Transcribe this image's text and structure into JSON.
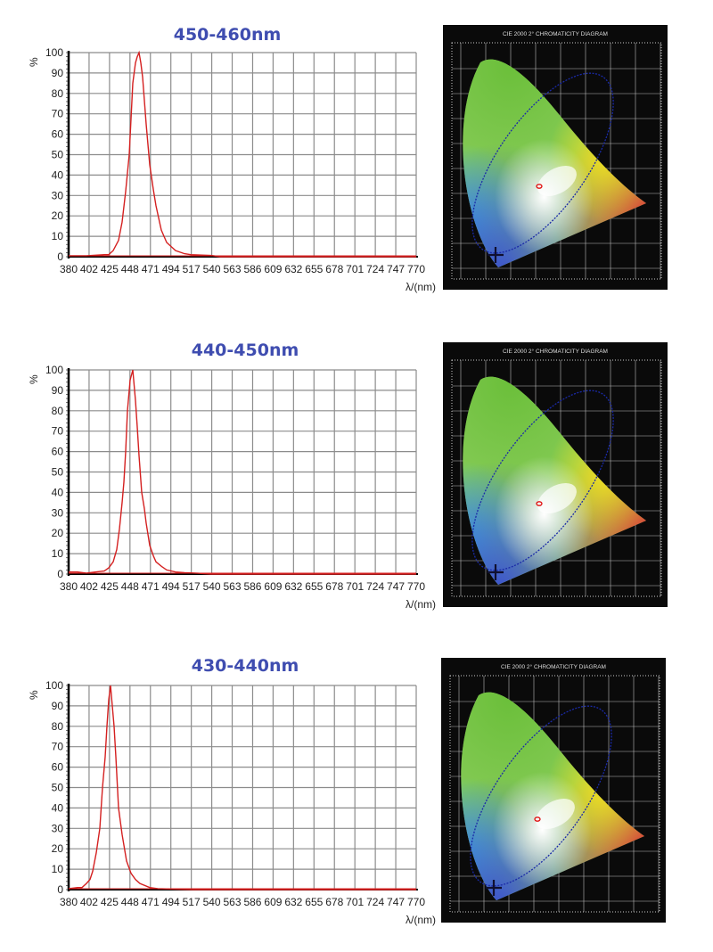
{
  "chart_data": [
    {
      "type": "line",
      "title": "450-460nm",
      "xlabel": "λ/(nm)",
      "ylabel": "%",
      "xlim": [
        380,
        770
      ],
      "ylim": [
        0,
        100
      ],
      "grid": true,
      "x_ticks": [
        "380",
        "402",
        "425",
        "448",
        "471",
        "494",
        "517",
        "540",
        "563",
        "586",
        "609",
        "632",
        "655",
        "678",
        "701",
        "724",
        "747",
        "770"
      ],
      "y_ticks": [
        "0",
        "10",
        "20",
        "30",
        "40",
        "50",
        "60",
        "70",
        "80",
        "90",
        "100"
      ],
      "line_color": "#d42020",
      "x": [
        380,
        400,
        420,
        425,
        430,
        436,
        440,
        444,
        448,
        452,
        455,
        457,
        459,
        461,
        463,
        467,
        471,
        475,
        478,
        484,
        490,
        500,
        510,
        517,
        530,
        540,
        550,
        563,
        600,
        700,
        770
      ],
      "y": [
        0.5,
        0.5,
        1,
        1,
        3,
        8,
        17,
        32,
        50,
        85,
        95,
        98,
        100,
        95,
        88,
        65,
        45,
        33,
        25,
        13,
        7,
        3,
        1.5,
        1,
        0.8,
        0.6,
        0,
        0,
        0,
        0,
        0
      ]
    },
    {
      "type": "line",
      "title": "440-450nm",
      "xlabel": "λ/(nm)",
      "ylabel": "%",
      "xlim": [
        380,
        770
      ],
      "ylim": [
        0,
        100
      ],
      "grid": true,
      "x_ticks": [
        "380",
        "402",
        "425",
        "448",
        "471",
        "494",
        "517",
        "540",
        "563",
        "586",
        "609",
        "632",
        "655",
        "678",
        "701",
        "724",
        "747",
        "770"
      ],
      "y_ticks": [
        "0",
        "10",
        "20",
        "30",
        "40",
        "50",
        "60",
        "70",
        "80",
        "90",
        "100"
      ],
      "line_color": "#d42020",
      "x": [
        380,
        390,
        400,
        410,
        420,
        425,
        430,
        434,
        437,
        440,
        442,
        444,
        446,
        449,
        452,
        455,
        457,
        459,
        462,
        465,
        467,
        471,
        475,
        478,
        485,
        490,
        500,
        510,
        525,
        540,
        600,
        700,
        770
      ],
      "y": [
        1,
        1,
        0.5,
        1,
        1.5,
        3,
        6,
        12,
        22,
        35,
        45,
        60,
        80,
        95,
        100,
        85,
        72,
        58,
        40,
        32,
        25,
        14,
        9,
        6,
        3.5,
        2,
        1,
        0.7,
        0.4,
        0,
        0,
        0,
        0
      ]
    },
    {
      "type": "line",
      "title": "430-440nm",
      "xlabel": "λ/(nm)",
      "ylabel": "%",
      "xlim": [
        380,
        770
      ],
      "ylim": [
        0,
        100
      ],
      "grid": true,
      "x_ticks": [
        "380",
        "402",
        "425",
        "448",
        "471",
        "494",
        "517",
        "540",
        "563",
        "586",
        "609",
        "632",
        "655",
        "678",
        "701",
        "724",
        "747",
        "770"
      ],
      "y_ticks": [
        "0",
        "10",
        "20",
        "30",
        "40",
        "50",
        "60",
        "70",
        "80",
        "90",
        "100"
      ],
      "line_color": "#d42020",
      "x": [
        380,
        390,
        395,
        400,
        404,
        407,
        411,
        415,
        418,
        421,
        423,
        425,
        427,
        429,
        431,
        433,
        436,
        440,
        445,
        450,
        455,
        460,
        471,
        480,
        494,
        520,
        600,
        700,
        770
      ],
      "y": [
        0.5,
        1,
        1,
        3,
        5,
        9,
        18,
        30,
        50,
        65,
        80,
        93,
        100,
        90,
        80,
        65,
        40,
        27,
        14,
        8,
        5,
        3,
        1,
        0.5,
        0.3,
        0,
        0,
        0,
        0
      ]
    }
  ],
  "diagrams": [
    {
      "title": "CIE 2000 2° CHROMATICITY DIAGRAM"
    },
    {
      "title": "CIE 2000 2° CHROMATICITY DIAGRAM"
    },
    {
      "title": "CIE 2000 2° CHROMATICITY DIAGRAM"
    }
  ],
  "colors": {
    "title": "#3f4db0",
    "curve": "#d42020",
    "grid": "#8c8c8c",
    "diagram_bg": "#0a0a0a"
  }
}
